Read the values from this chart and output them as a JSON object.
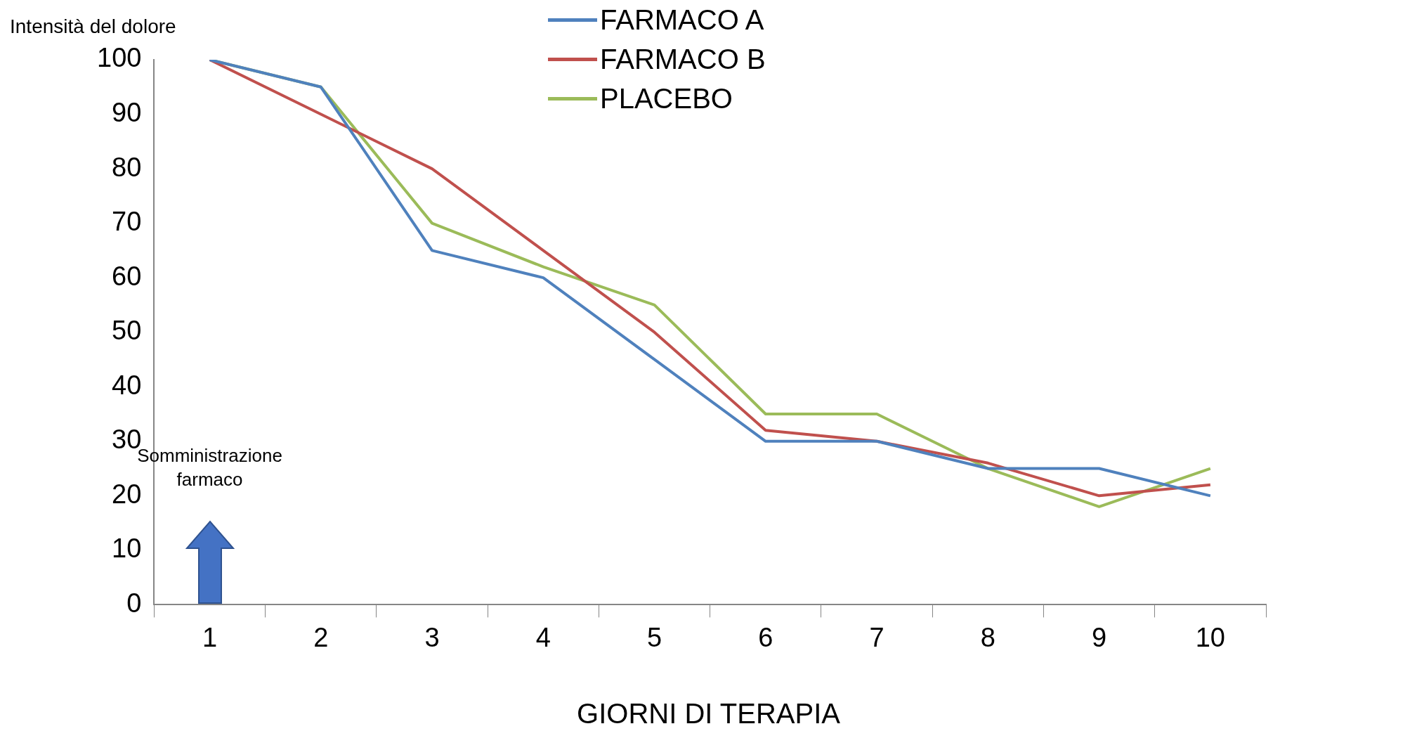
{
  "chart_data": {
    "type": "line",
    "xlabel": "GIORNI DI TERAPIA",
    "ylabel": "Intensità del dolore",
    "categories": [
      "1",
      "2",
      "3",
      "4",
      "5",
      "6",
      "7",
      "8",
      "9",
      "10"
    ],
    "series": [
      {
        "name": "FARMACO A",
        "color": "#4f81bd",
        "values": [
          100,
          95,
          65,
          60,
          45,
          30,
          30,
          25,
          25,
          20
        ]
      },
      {
        "name": "FARMACO B",
        "color": "#c0504d",
        "values": [
          100,
          90,
          80,
          65,
          50,
          32,
          30,
          26,
          20,
          22
        ]
      },
      {
        "name": "PLACEBO",
        "color": "#9bbb59",
        "values": [
          100,
          95,
          70,
          62,
          55,
          35,
          35,
          25,
          18,
          25
        ]
      }
    ],
    "ylim": [
      0,
      100
    ],
    "yticks": [
      0,
      10,
      20,
      30,
      40,
      50,
      60,
      70,
      80,
      90,
      100
    ],
    "grid": false,
    "legend": "top",
    "marker": "none",
    "line_style": "solid",
    "annotations": [
      "Somministrazione farmaco"
    ]
  }
}
